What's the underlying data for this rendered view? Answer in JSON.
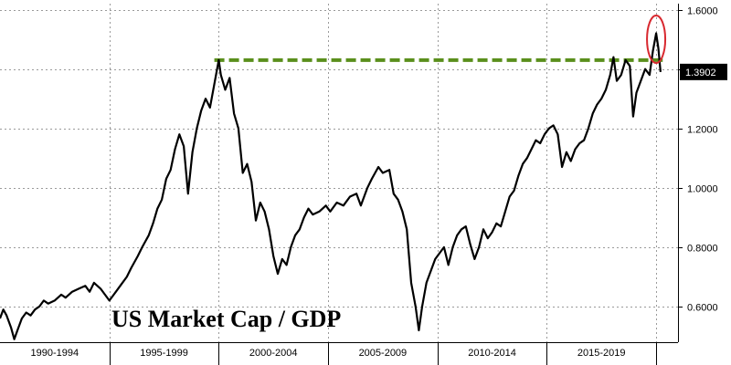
{
  "chart_data": {
    "type": "line",
    "title": "US Market Cap / GDP",
    "xlabel": "",
    "ylabel": "",
    "xlim": [
      1990.0,
      2021.0
    ],
    "ylim": [
      0.48,
      1.62
    ],
    "grid": true,
    "y_axis_side": "right",
    "y_ticks": [
      "0.6000",
      "0.8000",
      "1.0000",
      "1.2000",
      "1.4000",
      "1.6000"
    ],
    "x_ticks": [
      "1990-1994",
      "1995-1999",
      "2000-2004",
      "2005-2009",
      "2010-2014",
      "2015-2019"
    ],
    "last_value_label": "1.3902",
    "colors": {
      "series": "#000000",
      "reference_line": "#5a8f1c",
      "highlight_circle": "#d8282f"
    },
    "reference_line": {
      "y": 1.43,
      "x_start": 1999.8,
      "x_end": 2020.3,
      "style": "dashed"
    },
    "highlight": {
      "shape": "ellipse",
      "x": 2020.0,
      "y": 1.5
    },
    "series": [
      {
        "color": "#000000",
        "points": [
          [
            1990.0,
            0.56
          ],
          [
            1990.15,
            0.59
          ],
          [
            1990.3,
            0.57
          ],
          [
            1990.5,
            0.53
          ],
          [
            1990.65,
            0.49
          ],
          [
            1990.8,
            0.52
          ],
          [
            1991.0,
            0.56
          ],
          [
            1991.2,
            0.58
          ],
          [
            1991.4,
            0.57
          ],
          [
            1991.6,
            0.59
          ],
          [
            1991.8,
            0.6
          ],
          [
            1992.0,
            0.62
          ],
          [
            1992.2,
            0.61
          ],
          [
            1992.5,
            0.62
          ],
          [
            1992.8,
            0.64
          ],
          [
            1993.0,
            0.63
          ],
          [
            1993.3,
            0.65
          ],
          [
            1993.6,
            0.66
          ],
          [
            1993.9,
            0.67
          ],
          [
            1994.1,
            0.65
          ],
          [
            1994.3,
            0.68
          ],
          [
            1994.6,
            0.66
          ],
          [
            1994.8,
            0.64
          ],
          [
            1995.0,
            0.62
          ],
          [
            1995.2,
            0.64
          ],
          [
            1995.5,
            0.67
          ],
          [
            1995.8,
            0.7
          ],
          [
            1996.0,
            0.73
          ],
          [
            1996.3,
            0.77
          ],
          [
            1996.5,
            0.8
          ],
          [
            1996.8,
            0.84
          ],
          [
            1997.0,
            0.88
          ],
          [
            1997.2,
            0.93
          ],
          [
            1997.4,
            0.96
          ],
          [
            1997.6,
            1.03
          ],
          [
            1997.8,
            1.06
          ],
          [
            1998.0,
            1.13
          ],
          [
            1998.2,
            1.18
          ],
          [
            1998.4,
            1.14
          ],
          [
            1998.6,
            0.98
          ],
          [
            1998.8,
            1.12
          ],
          [
            1999.0,
            1.2
          ],
          [
            1999.2,
            1.26
          ],
          [
            1999.4,
            1.3
          ],
          [
            1999.6,
            1.27
          ],
          [
            1999.8,
            1.35
          ],
          [
            2000.0,
            1.43
          ],
          [
            2000.1,
            1.38
          ],
          [
            2000.3,
            1.33
          ],
          [
            2000.5,
            1.37
          ],
          [
            2000.7,
            1.25
          ],
          [
            2000.9,
            1.2
          ],
          [
            2001.1,
            1.05
          ],
          [
            2001.3,
            1.08
          ],
          [
            2001.5,
            1.02
          ],
          [
            2001.7,
            0.89
          ],
          [
            2001.9,
            0.95
          ],
          [
            2002.1,
            0.92
          ],
          [
            2002.3,
            0.86
          ],
          [
            2002.5,
            0.77
          ],
          [
            2002.7,
            0.71
          ],
          [
            2002.9,
            0.76
          ],
          [
            2003.1,
            0.74
          ],
          [
            2003.3,
            0.8
          ],
          [
            2003.5,
            0.84
          ],
          [
            2003.7,
            0.86
          ],
          [
            2003.9,
            0.9
          ],
          [
            2004.1,
            0.93
          ],
          [
            2004.3,
            0.91
          ],
          [
            2004.6,
            0.92
          ],
          [
            2004.9,
            0.94
          ],
          [
            2005.1,
            0.92
          ],
          [
            2005.4,
            0.95
          ],
          [
            2005.7,
            0.94
          ],
          [
            2006.0,
            0.97
          ],
          [
            2006.3,
            0.98
          ],
          [
            2006.5,
            0.94
          ],
          [
            2006.8,
            1.0
          ],
          [
            2007.0,
            1.03
          ],
          [
            2007.3,
            1.07
          ],
          [
            2007.5,
            1.05
          ],
          [
            2007.8,
            1.06
          ],
          [
            2008.0,
            0.98
          ],
          [
            2008.2,
            0.96
          ],
          [
            2008.4,
            0.92
          ],
          [
            2008.6,
            0.86
          ],
          [
            2008.8,
            0.68
          ],
          [
            2009.0,
            0.6
          ],
          [
            2009.15,
            0.52
          ],
          [
            2009.3,
            0.6
          ],
          [
            2009.5,
            0.68
          ],
          [
            2009.7,
            0.72
          ],
          [
            2009.9,
            0.76
          ],
          [
            2010.1,
            0.78
          ],
          [
            2010.3,
            0.8
          ],
          [
            2010.5,
            0.74
          ],
          [
            2010.7,
            0.8
          ],
          [
            2010.9,
            0.84
          ],
          [
            2011.1,
            0.86
          ],
          [
            2011.3,
            0.87
          ],
          [
            2011.5,
            0.81
          ],
          [
            2011.7,
            0.76
          ],
          [
            2011.9,
            0.8
          ],
          [
            2012.1,
            0.86
          ],
          [
            2012.3,
            0.83
          ],
          [
            2012.5,
            0.85
          ],
          [
            2012.7,
            0.88
          ],
          [
            2012.9,
            0.87
          ],
          [
            2013.1,
            0.92
          ],
          [
            2013.3,
            0.97
          ],
          [
            2013.5,
            0.99
          ],
          [
            2013.7,
            1.04
          ],
          [
            2013.9,
            1.08
          ],
          [
            2014.1,
            1.1
          ],
          [
            2014.3,
            1.13
          ],
          [
            2014.5,
            1.16
          ],
          [
            2014.7,
            1.15
          ],
          [
            2014.9,
            1.18
          ],
          [
            2015.1,
            1.2
          ],
          [
            2015.3,
            1.21
          ],
          [
            2015.5,
            1.18
          ],
          [
            2015.7,
            1.07
          ],
          [
            2015.9,
            1.12
          ],
          [
            2016.1,
            1.09
          ],
          [
            2016.3,
            1.13
          ],
          [
            2016.5,
            1.15
          ],
          [
            2016.7,
            1.16
          ],
          [
            2016.9,
            1.2
          ],
          [
            2017.1,
            1.25
          ],
          [
            2017.3,
            1.28
          ],
          [
            2017.5,
            1.3
          ],
          [
            2017.7,
            1.33
          ],
          [
            2017.9,
            1.38
          ],
          [
            2018.05,
            1.44
          ],
          [
            2018.2,
            1.36
          ],
          [
            2018.4,
            1.38
          ],
          [
            2018.6,
            1.43
          ],
          [
            2018.8,
            1.41
          ],
          [
            2018.95,
            1.24
          ],
          [
            2019.1,
            1.32
          ],
          [
            2019.3,
            1.36
          ],
          [
            2019.5,
            1.4
          ],
          [
            2019.7,
            1.38
          ],
          [
            2019.85,
            1.46
          ],
          [
            2020.0,
            1.52
          ],
          [
            2020.1,
            1.47
          ],
          [
            2020.2,
            1.39
          ]
        ]
      }
    ]
  }
}
